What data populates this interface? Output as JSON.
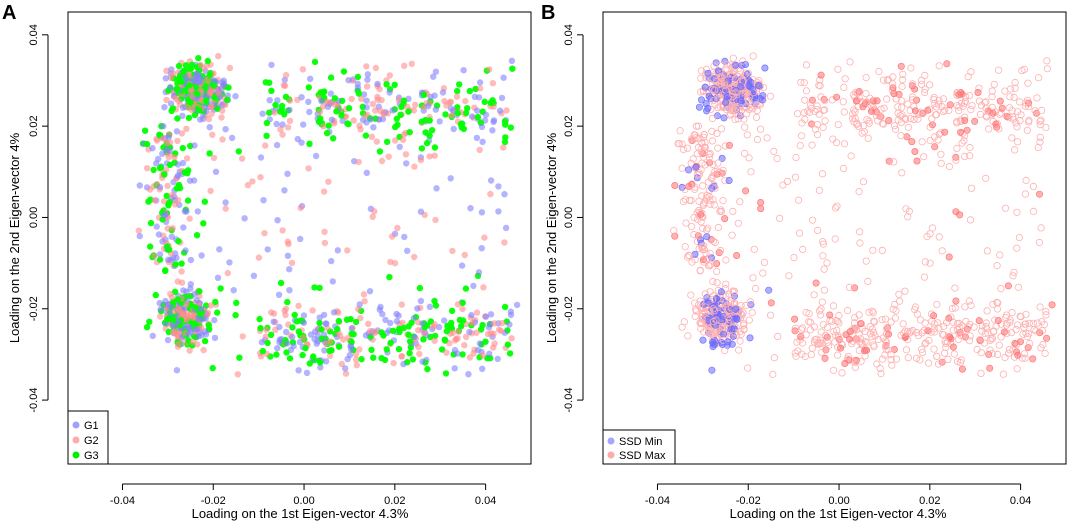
{
  "chart_data": [
    {
      "panel_label": "A",
      "type": "scatter",
      "title": "",
      "xlabel": "Loading on the 1st Eigen-vector 4.3%",
      "ylabel": "Loading on the 2nd Eigen-vector 4%",
      "xlim": [
        -0.052,
        0.05
      ],
      "ylim": [
        -0.054,
        0.045
      ],
      "xticks": [
        -0.04,
        -0.02,
        0.0,
        0.02,
        0.04
      ],
      "xtick_labels": [
        "-0.04",
        "-0.02",
        "0.00",
        "0.02",
        "0.04"
      ],
      "yticks": [
        -0.04,
        -0.02,
        0.0,
        0.02,
        0.04
      ],
      "ytick_labels": [
        "-0.04",
        "-0.02",
        "0.00",
        "0.02",
        "0.04"
      ],
      "grid": false,
      "legend_position": "bottom-left",
      "series": [
        {
          "name": "G1",
          "color": "#8080ff",
          "marker": "filled-circle"
        },
        {
          "name": "G2",
          "color": "#ff8c8c",
          "marker": "filled-circle"
        },
        {
          "name": "G3",
          "color": "#00ff00",
          "marker": "filled-circle"
        }
      ]
    },
    {
      "panel_label": "B",
      "type": "scatter",
      "title": "",
      "xlabel": "Loading on the 1st Eigen-vector 4.3%",
      "ylabel": "Loading on the 2nd Eigen-vector 4%",
      "xlim": [
        -0.052,
        0.05
      ],
      "ylim": [
        -0.054,
        0.045
      ],
      "xticks": [
        -0.04,
        -0.02,
        0.0,
        0.02,
        0.04
      ],
      "xtick_labels": [
        "-0.04",
        "-0.02",
        "0.00",
        "0.02",
        "0.04"
      ],
      "yticks": [
        -0.04,
        -0.02,
        0.0,
        0.02,
        0.04
      ],
      "ytick_labels": [
        "-0.04",
        "-0.02",
        "0.00",
        "0.02",
        "0.04"
      ],
      "grid": false,
      "legend_position": "bottom-left",
      "series": [
        {
          "name": "SSD Min",
          "color": "#6a6aff",
          "marker": "filled-circle"
        },
        {
          "name": "SSD Max",
          "color": "#ff7070",
          "marker": "filled-circle"
        }
      ],
      "background_series": {
        "color": "#ffb0b0",
        "marker": "open-circle"
      }
    }
  ]
}
